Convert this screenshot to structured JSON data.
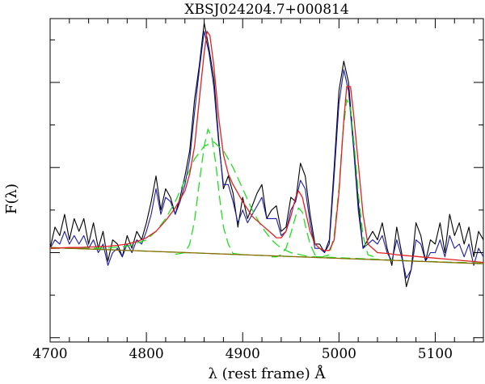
{
  "chart_data": {
    "type": "line",
    "title": "XBSJ024204.7+000814",
    "xlabel": "λ (rest frame) Å",
    "ylabel": "F(λ)",
    "xlim": [
      4700,
      5150
    ],
    "ylim": [
      0,
      7.6
    ],
    "x_ticks": [
      4700,
      4800,
      4900,
      5000,
      5100
    ],
    "x_tick_labels": [
      "4700",
      "4800",
      "4900",
      "5000",
      "5100"
    ],
    "y_major_ticks": [
      0.1,
      2.1,
      4.1,
      6.1
    ],
    "y_minor_ticks": [
      1.1,
      3.1,
      5.1,
      7.1
    ],
    "y_tick_labels_shown": false,
    "grid": false,
    "legend": "none",
    "colors": {
      "observed": "#000000",
      "smoothed": "#1a1aa6",
      "total_model": "#e02020",
      "components": "#22dd22",
      "continuum_model": "#8a6a00"
    },
    "series": [
      {
        "key": "observed",
        "style": "solid",
        "x": [
          4700,
          4705,
          4710,
          4715,
          4720,
          4725,
          4730,
          4735,
          4740,
          4745,
          4750,
          4755,
          4760,
          4765,
          4770,
          4775,
          4780,
          4785,
          4790,
          4795,
          4800,
          4805,
          4810,
          4815,
          4820,
          4825,
          4830,
          4835,
          4840,
          4845,
          4850,
          4855,
          4860,
          4865,
          4870,
          4875,
          4880,
          4885,
          4890,
          4895,
          4900,
          4905,
          4910,
          4915,
          4920,
          4925,
          4930,
          4935,
          4940,
          4945,
          4950,
          4955,
          4960,
          4965,
          4970,
          4975,
          4980,
          4985,
          4990,
          4995,
          5000,
          5005,
          5010,
          5015,
          5020,
          5025,
          5030,
          5035,
          5040,
          5045,
          5050,
          5055,
          5060,
          5065,
          5070,
          5075,
          5080,
          5085,
          5090,
          5095,
          5100,
          5105,
          5110,
          5115,
          5120,
          5125,
          5130,
          5135,
          5140,
          5145,
          5150
        ],
        "y": [
          2.2,
          2.7,
          2.5,
          3.0,
          2.4,
          2.9,
          2.6,
          2.9,
          2.3,
          2.8,
          2.2,
          2.6,
          1.9,
          2.4,
          2.3,
          2.0,
          2.5,
          2.2,
          2.6,
          2.4,
          2.8,
          3.3,
          3.9,
          3.1,
          3.6,
          3.4,
          3.0,
          3.4,
          3.9,
          4.5,
          5.7,
          6.5,
          7.5,
          6.9,
          6.2,
          4.8,
          3.6,
          3.9,
          3.5,
          2.7,
          3.4,
          2.9,
          3.2,
          3.5,
          3.7,
          2.9,
          3.1,
          3.2,
          2.6,
          2.7,
          3.4,
          3.3,
          4.2,
          3.9,
          3.0,
          2.3,
          2.3,
          2.1,
          2.4,
          4.1,
          5.9,
          6.6,
          6.1,
          4.7,
          3.3,
          2.2,
          2.4,
          2.6,
          2.4,
          2.8,
          2.2,
          1.8,
          2.7,
          2.1,
          1.3,
          1.7,
          2.8,
          2.5,
          1.9,
          2.4,
          2.3,
          2.8,
          2.1,
          3.0,
          2.5,
          2.8,
          2.3,
          2.7,
          2.0,
          2.6,
          2.4
        ]
      },
      {
        "key": "smoothed",
        "style": "solid",
        "x": [
          4700,
          4705,
          4710,
          4715,
          4720,
          4725,
          4730,
          4735,
          4740,
          4745,
          4750,
          4755,
          4760,
          4765,
          4770,
          4775,
          4780,
          4785,
          4790,
          4795,
          4800,
          4805,
          4810,
          4815,
          4820,
          4825,
          4830,
          4835,
          4840,
          4845,
          4850,
          4855,
          4860,
          4865,
          4870,
          4875,
          4880,
          4885,
          4890,
          4895,
          4900,
          4905,
          4910,
          4915,
          4920,
          4925,
          4930,
          4935,
          4940,
          4945,
          4950,
          4955,
          4960,
          4965,
          4970,
          4975,
          4980,
          4985,
          4990,
          4995,
          5000,
          5005,
          5010,
          5015,
          5020,
          5025,
          5030,
          5035,
          5040,
          5045,
          5050,
          5055,
          5060,
          5065,
          5070,
          5075,
          5080,
          5085,
          5090,
          5095,
          5100,
          5105,
          5110,
          5115,
          5120,
          5125,
          5130,
          5135,
          5140,
          5145,
          5150
        ],
        "y": [
          2.2,
          2.4,
          2.3,
          2.6,
          2.3,
          2.5,
          2.3,
          2.5,
          2.2,
          2.4,
          2.1,
          2.3,
          1.8,
          2.1,
          2.2,
          2.0,
          2.3,
          2.1,
          2.4,
          2.3,
          2.6,
          3.0,
          3.6,
          3.0,
          3.4,
          3.3,
          3.0,
          3.3,
          3.7,
          4.3,
          5.4,
          6.4,
          7.3,
          6.8,
          6.0,
          4.7,
          3.7,
          3.7,
          3.3,
          2.8,
          3.1,
          2.8,
          3.0,
          3.2,
          3.4,
          2.9,
          2.9,
          2.9,
          2.5,
          2.6,
          3.1,
          3.3,
          3.8,
          3.6,
          2.8,
          2.2,
          2.2,
          2.1,
          2.3,
          3.9,
          5.6,
          6.4,
          5.9,
          4.6,
          3.1,
          2.2,
          2.3,
          2.4,
          2.3,
          2.5,
          2.1,
          1.9,
          2.4,
          2.0,
          1.5,
          1.7,
          2.4,
          2.3,
          1.9,
          2.1,
          2.1,
          2.4,
          2.0,
          2.5,
          2.2,
          2.3,
          2.0,
          2.3,
          1.8,
          2.2,
          2.0
        ]
      },
      {
        "key": "total_model",
        "style": "solid",
        "x": [
          4700,
          4710,
          4720,
          4730,
          4740,
          4750,
          4760,
          4770,
          4780,
          4790,
          4800,
          4810,
          4820,
          4830,
          4840,
          4845,
          4850,
          4855,
          4860,
          4863,
          4866,
          4870,
          4875,
          4880,
          4885,
          4890,
          4900,
          4910,
          4920,
          4930,
          4935,
          4940,
          4945,
          4950,
          4955,
          4958,
          4962,
          4965,
          4970,
          4975,
          4980,
          4985,
          4990,
          4995,
          5000,
          5005,
          5008,
          5012,
          5015,
          5020,
          5025,
          5030,
          5040,
          5050,
          5060,
          5070,
          5080,
          5090,
          5100,
          5110,
          5120,
          5130,
          5140,
          5150
        ],
        "y": [
          2.2,
          2.21,
          2.22,
          2.22,
          2.23,
          2.24,
          2.25,
          2.27,
          2.3,
          2.36,
          2.45,
          2.6,
          2.85,
          3.15,
          3.55,
          3.95,
          4.6,
          5.7,
          6.8,
          7.3,
          7.2,
          6.5,
          5.3,
          4.4,
          3.95,
          3.7,
          3.3,
          2.95,
          2.75,
          2.55,
          2.45,
          2.45,
          2.6,
          2.95,
          3.4,
          3.55,
          3.4,
          3.1,
          2.6,
          2.3,
          2.2,
          2.15,
          2.15,
          2.4,
          3.5,
          5.2,
          6.0,
          6.0,
          5.4,
          4.2,
          3.0,
          2.3,
          2.1,
          2.08,
          2.05,
          2.03,
          2.01,
          1.99,
          1.97,
          1.95,
          1.93,
          1.91,
          1.89,
          1.87
        ]
      },
      {
        "key": "broad_component",
        "style": "dashed",
        "x": [
          4700,
          4720,
          4740,
          4760,
          4780,
          4800,
          4810,
          4820,
          4830,
          4840,
          4850,
          4860,
          4870,
          4880,
          4890,
          4900,
          4910,
          4920,
          4930,
          4940,
          4950,
          4960,
          4970,
          4980,
          4990,
          5000,
          5020,
          5050,
          5080,
          5110,
          5150
        ],
        "y": [
          2.2,
          2.2,
          2.2,
          2.21,
          2.25,
          2.4,
          2.6,
          2.9,
          3.3,
          3.8,
          4.3,
          4.6,
          4.7,
          4.5,
          4.1,
          3.6,
          3.1,
          2.7,
          2.4,
          2.2,
          2.1,
          2.05,
          2.0,
          2.0,
          1.99,
          1.98,
          1.96,
          1.93,
          1.9,
          1.88,
          1.85
        ]
      },
      {
        "key": "narrow_hbeta",
        "style": "dashed",
        "x": [
          4830,
          4840,
          4845,
          4850,
          4855,
          4860,
          4864,
          4868,
          4872,
          4876,
          4880,
          4885,
          4890,
          4900
        ],
        "y": [
          2.06,
          2.1,
          2.3,
          2.85,
          3.75,
          4.6,
          5.0,
          4.8,
          4.2,
          3.4,
          2.7,
          2.3,
          2.08,
          2.05
        ]
      },
      {
        "key": "narrow_oiii_4959",
        "style": "dashed",
        "x": [
          4930,
          4935,
          4940,
          4945,
          4950,
          4955,
          4958,
          4962,
          4966,
          4970,
          4975,
          4980
        ],
        "y": [
          2.0,
          2.0,
          2.05,
          2.2,
          2.55,
          2.95,
          3.15,
          3.05,
          2.65,
          2.3,
          2.05,
          2.0
        ]
      },
      {
        "key": "narrow_oiii_5007",
        "style": "dashed",
        "x": [
          4980,
          4990,
          4995,
          5000,
          5004,
          5008,
          5012,
          5016,
          5020,
          5025,
          5030,
          5040
        ],
        "y": [
          1.98,
          2.05,
          2.5,
          3.6,
          4.9,
          5.7,
          5.5,
          4.6,
          3.5,
          2.5,
          2.05,
          1.97
        ]
      },
      {
        "key": "continuum",
        "style": "dashed",
        "x": [
          4700,
          5150
        ],
        "y": [
          2.22,
          1.84
        ]
      },
      {
        "key": "continuum_model",
        "style": "solid",
        "x": [
          4700,
          5150
        ],
        "y": [
          2.22,
          1.84
        ]
      }
    ]
  }
}
